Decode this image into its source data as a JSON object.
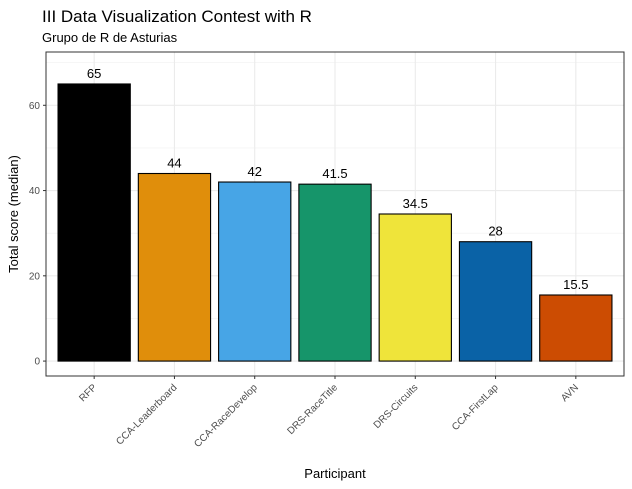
{
  "chart_data": {
    "type": "bar",
    "title": "III Data Visualization Contest with R",
    "subtitle": "Grupo de R de Asturias",
    "xlabel": "Participant",
    "ylabel": "Total score (median)",
    "categories": [
      "RFP",
      "CCA-Leaderboard",
      "CCA-RaceDevelop",
      "DRS-RaceTitle",
      "DRS-Circuits",
      "CCA-FirstLap",
      "AVN"
    ],
    "values": [
      65,
      44,
      42,
      41.5,
      34.5,
      28,
      15.5
    ],
    "value_labels": [
      "65",
      "44",
      "42",
      "41.5",
      "34.5",
      "28",
      "15.5"
    ],
    "colors": [
      "#000000",
      "#E08E0B",
      "#47A5E6",
      "#16956A",
      "#EFE43A",
      "#0A62A6",
      "#CC4C02"
    ],
    "ylim": [
      -3.5,
      72.5
    ],
    "yticks": [
      0,
      20,
      40,
      60
    ],
    "ytick_labels": [
      "0",
      "20",
      "40",
      "60"
    ],
    "grid": true,
    "legend": "none"
  }
}
